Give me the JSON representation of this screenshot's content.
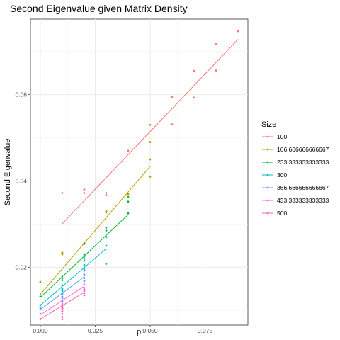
{
  "chart_data": {
    "type": "scatter",
    "title": "Second Eigenvalue given Matrix Density",
    "xlabel": "p",
    "ylabel": "Second Eigenvalue",
    "xlim": [
      -0.0045,
      0.0945
    ],
    "ylim": [
      0.0066,
      0.0775
    ],
    "x_ticks": [
      0.0,
      0.025,
      0.05,
      0.075
    ],
    "x_tick_labels": [
      "0.000",
      "0.025",
      "0.050",
      "0.075"
    ],
    "y_ticks": [
      0.02,
      0.04,
      0.06
    ],
    "y_tick_labels": [
      "0.02",
      "0.04",
      "0.06"
    ],
    "grid": true,
    "legend_title": "Size",
    "legend_position": "right",
    "series": [
      {
        "name": "100",
        "color": "#F8766D",
        "points": [
          [
            0.01,
            0.0372
          ],
          [
            0.02,
            0.038
          ],
          [
            0.02,
            0.0372
          ],
          [
            0.03,
            0.0372
          ],
          [
            0.03,
            0.0367
          ],
          [
            0.04,
            0.047
          ],
          [
            0.05,
            0.053
          ],
          [
            0.06,
            0.0594
          ],
          [
            0.06,
            0.0531
          ],
          [
            0.07,
            0.0655
          ],
          [
            0.07,
            0.0593
          ],
          [
            0.08,
            0.0717
          ],
          [
            0.08,
            0.0656
          ],
          [
            0.09,
            0.0747
          ]
        ],
        "fit": [
          [
            0.01,
            0.0301
          ],
          [
            0.09,
            0.0728
          ]
        ]
      },
      {
        "name": "166.666666666667",
        "color": "#B79F00",
        "points": [
          [
            0.0,
            0.0166
          ],
          [
            0.01,
            0.0234
          ],
          [
            0.01,
            0.0232
          ],
          [
            0.01,
            0.023
          ],
          [
            0.02,
            0.0256
          ],
          [
            0.02,
            0.0254
          ],
          [
            0.03,
            0.033
          ],
          [
            0.03,
            0.0327
          ],
          [
            0.04,
            0.037
          ],
          [
            0.04,
            0.0365
          ],
          [
            0.05,
            0.049
          ],
          [
            0.05,
            0.045
          ],
          [
            0.05,
            0.041
          ]
        ],
        "fit": [
          [
            0.0,
            0.0137
          ],
          [
            0.05,
            0.0434
          ]
        ]
      },
      {
        "name": "233.333333333333",
        "color": "#00BA38",
        "points": [
          [
            0.0,
            0.0132
          ],
          [
            0.01,
            0.018
          ],
          [
            0.01,
            0.0175
          ],
          [
            0.01,
            0.017
          ],
          [
            0.02,
            0.0255
          ],
          [
            0.02,
            0.023
          ],
          [
            0.02,
            0.022
          ],
          [
            0.03,
            0.0292
          ],
          [
            0.03,
            0.0285
          ],
          [
            0.03,
            0.027
          ],
          [
            0.04,
            0.0362
          ],
          [
            0.04,
            0.0352
          ],
          [
            0.04,
            0.0325
          ]
        ],
        "fit": [
          [
            0.0,
            0.013
          ],
          [
            0.04,
            0.0322
          ]
        ]
      },
      {
        "name": "300",
        "color": "#00BFC4",
        "points": [
          [
            0.0,
            0.0112
          ],
          [
            0.01,
            0.0158
          ],
          [
            0.01,
            0.015
          ],
          [
            0.01,
            0.0145
          ],
          [
            0.01,
            0.014
          ],
          [
            0.02,
            0.0225
          ],
          [
            0.02,
            0.0215
          ],
          [
            0.02,
            0.0205
          ],
          [
            0.02,
            0.0195
          ],
          [
            0.03,
            0.027
          ],
          [
            0.03,
            0.025
          ],
          [
            0.03,
            0.0208
          ]
        ],
        "fit": [
          [
            0.0,
            0.0112
          ],
          [
            0.03,
            0.0243
          ]
        ]
      },
      {
        "name": "366.666666666667",
        "color": "#619CFF",
        "points": [
          [
            0.0,
            0.0106
          ],
          [
            0.01,
            0.0138
          ],
          [
            0.01,
            0.0132
          ],
          [
            0.01,
            0.0128
          ],
          [
            0.01,
            0.0122
          ],
          [
            0.02,
            0.0192
          ],
          [
            0.02,
            0.0183
          ],
          [
            0.02,
            0.0175
          ],
          [
            0.02,
            0.0168
          ]
        ],
        "fit": [
          [
            0.0,
            0.0102
          ],
          [
            0.02,
            0.0178
          ]
        ]
      },
      {
        "name": "433.333333333333",
        "color": "#F564E3",
        "points": [
          [
            0.0,
            0.0092
          ],
          [
            0.01,
            0.012
          ],
          [
            0.01,
            0.0115
          ],
          [
            0.01,
            0.011
          ],
          [
            0.01,
            0.0104
          ],
          [
            0.02,
            0.016
          ],
          [
            0.02,
            0.0152
          ],
          [
            0.02,
            0.0148
          ]
        ],
        "fit": [
          [
            0.0,
            0.009
          ],
          [
            0.02,
            0.0156
          ]
        ]
      },
      {
        "name": "500",
        "color": "#FF64B0",
        "points": [
          [
            0.0,
            0.008
          ],
          [
            0.01,
            0.0105
          ],
          [
            0.01,
            0.0098
          ],
          [
            0.01,
            0.0092
          ],
          [
            0.01,
            0.0085
          ],
          [
            0.01,
            0.008
          ],
          [
            0.02,
            0.0145
          ],
          [
            0.02,
            0.014
          ],
          [
            0.02,
            0.0135
          ]
        ],
        "fit": [
          [
            0.0,
            0.008
          ],
          [
            0.02,
            0.0142
          ]
        ]
      }
    ]
  }
}
